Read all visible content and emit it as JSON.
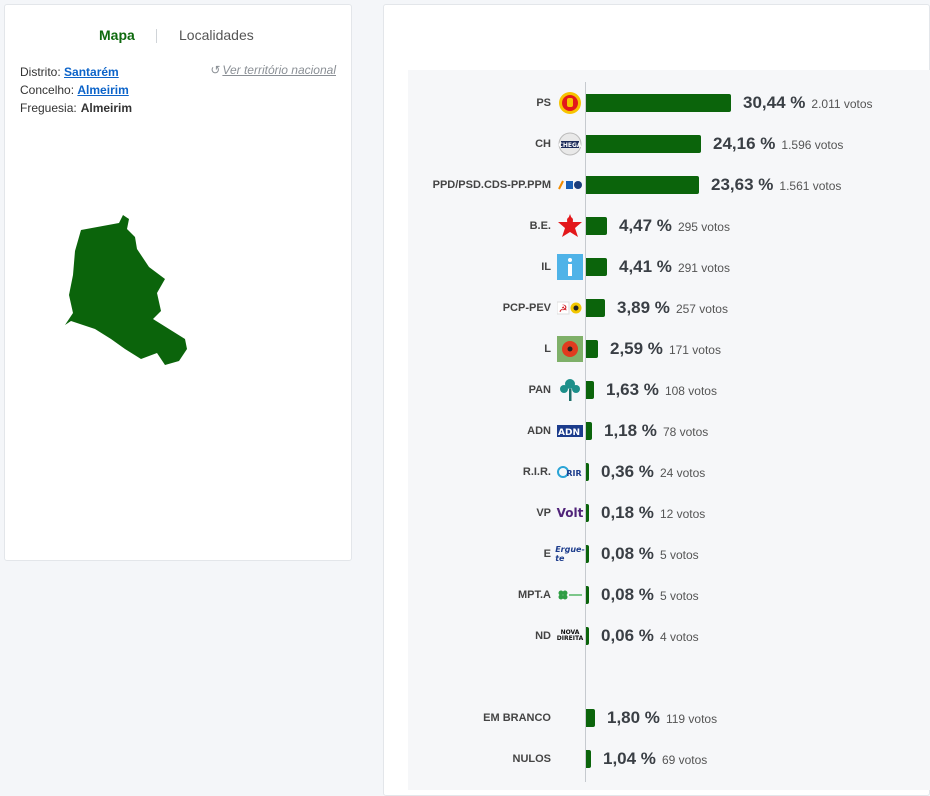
{
  "tabs": {
    "map_label": "Mapa",
    "places_label": "Localidades"
  },
  "location": {
    "district_label": "Distrito:",
    "district_value": "Santarém",
    "county_label": "Concelho:",
    "county_value": "Almeirim",
    "parish_label": "Freguesia:",
    "parish_value": "Almeirim",
    "reset_label": "Ver território nacional",
    "reset_icon": "undo-icon"
  },
  "map": {
    "region_color": "#0b640b"
  },
  "votes_unit": "votos",
  "chart_data": {
    "type": "bar",
    "orientation": "horizontal",
    "bar_color": "#0b640b",
    "categories": [
      "PS",
      "CH",
      "PPD/PSD.CDS-PP.PPM",
      "B.E.",
      "IL",
      "PCP-PEV",
      "L",
      "PAN",
      "ADN",
      "R.I.R.",
      "VP",
      "E",
      "MPT.A",
      "ND",
      "EM BRANCO",
      "NULOS"
    ],
    "values": [
      30.44,
      24.16,
      23.63,
      4.47,
      4.41,
      3.89,
      2.59,
      1.63,
      1.18,
      0.36,
      0.18,
      0.08,
      0.08,
      0.06,
      1.8,
      1.04
    ],
    "rows": [
      {
        "party": "PS",
        "pct": "30,44 %",
        "votes": "2.011",
        "value": 30.44,
        "logo": "ps-fist-logo"
      },
      {
        "party": "CH",
        "pct": "24,16 %",
        "votes": "1.596",
        "value": 24.16,
        "logo": "chega-logo"
      },
      {
        "party": "PPD/PSD.CDS-PP.PPM",
        "pct": "23,63 %",
        "votes": "1.561",
        "value": 23.63,
        "logo": "ad-coalition-logo"
      },
      {
        "party": "B.E.",
        "pct": "4,47 %",
        "votes": "295",
        "value": 4.47,
        "logo": "bloco-star-logo"
      },
      {
        "party": "IL",
        "pct": "4,41 %",
        "votes": "291",
        "value": 4.41,
        "logo": "il-logo"
      },
      {
        "party": "PCP-PEV",
        "pct": "3,89 %",
        "votes": "257",
        "value": 3.89,
        "logo": "cdu-logo"
      },
      {
        "party": "L",
        "pct": "2,59 %",
        "votes": "171",
        "value": 2.59,
        "logo": "livre-poppy-logo"
      },
      {
        "party": "PAN",
        "pct": "1,63 %",
        "votes": "108",
        "value": 1.63,
        "logo": "pan-tree-logo"
      },
      {
        "party": "ADN",
        "pct": "1,18 %",
        "votes": "78",
        "value": 1.18,
        "logo": "adn-logo"
      },
      {
        "party": "R.I.R.",
        "pct": "0,36 %",
        "votes": "24",
        "value": 0.36,
        "logo": "rir-logo"
      },
      {
        "party": "VP",
        "pct": "0,18 %",
        "votes": "12",
        "value": 0.18,
        "logo": "volt-logo"
      },
      {
        "party": "E",
        "pct": "0,08 %",
        "votes": "5",
        "value": 0.08,
        "logo": "ergue-te-logo"
      },
      {
        "party": "MPT.A",
        "pct": "0,08 %",
        "votes": "5",
        "value": 0.08,
        "logo": "mpt-clover-logo"
      },
      {
        "party": "ND",
        "pct": "0,06 %",
        "votes": "4",
        "value": 0.06,
        "logo": "nova-direita-logo"
      },
      {
        "party": "EM BRANCO",
        "pct": "1,80 %",
        "votes": "119",
        "value": 1.8,
        "logo": ""
      },
      {
        "party": "NULOS",
        "pct": "1,04 %",
        "votes": "69",
        "value": 1.04,
        "logo": ""
      }
    ]
  }
}
